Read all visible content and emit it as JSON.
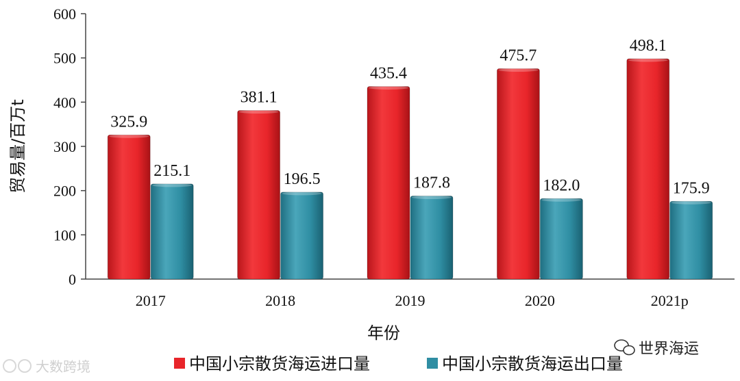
{
  "chart_data": {
    "type": "bar",
    "categories": [
      "2017",
      "2018",
      "2019",
      "2020",
      "2021p"
    ],
    "series": [
      {
        "name": "中国小宗散货海运进口量",
        "values": [
          325.9,
          381.1,
          435.4,
          475.7,
          498.1
        ],
        "color": "#e8252a"
      },
      {
        "name": "中国小宗散货海运出口量",
        "values": [
          215.1,
          196.5,
          187.8,
          182.0,
          175.9
        ],
        "color": "#2f8ea3"
      }
    ],
    "xlabel": "年份",
    "ylabel": "贸易量/百万t",
    "ylim": [
      0,
      600
    ],
    "yticks": [
      0,
      100,
      200,
      300,
      400,
      500,
      600
    ],
    "grid": false,
    "legend_position": "bottom",
    "data_labels": true
  },
  "watermarks": {
    "left": "大数跨境",
    "right": "世界海运",
    "icon": "wechat-icon"
  }
}
